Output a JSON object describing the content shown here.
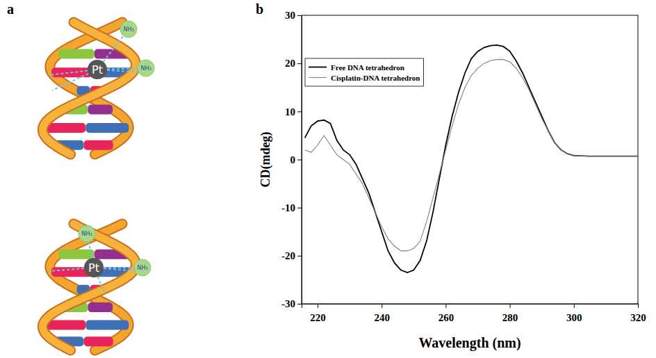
{
  "panel_letters": [
    "a",
    "b"
  ],
  "diagram": {
    "complexes": [
      {
        "metal": "Pt",
        "ligands": [
          "NH₃",
          "NH₃"
        ]
      },
      {
        "metal": "Pt",
        "ligands": [
          "NH₃",
          "NH₃"
        ]
      }
    ]
  },
  "chart_data": {
    "type": "line",
    "x_label": "Wavelength (nm)",
    "y_label": "CD(mdeg)",
    "x": [
      216,
      218,
      220,
      222,
      224,
      226,
      228,
      230,
      232,
      234,
      236,
      238,
      240,
      242,
      244,
      246,
      248,
      250,
      252,
      254,
      256,
      258,
      260,
      262,
      264,
      266,
      268,
      270,
      272,
      274,
      276,
      278,
      280,
      282,
      284,
      286,
      288,
      290,
      292,
      294,
      296,
      298,
      300,
      305,
      310,
      315,
      320
    ],
    "series": [
      {
        "name": "Free DNA tetrahedron",
        "color": "#000000",
        "values": [
          4.5,
          7,
          8,
          8.2,
          7.5,
          4,
          2,
          1,
          -1,
          -4,
          -7,
          -11,
          -15,
          -19,
          -21.5,
          -23,
          -23.5,
          -23,
          -21,
          -17,
          -11,
          -4,
          3,
          9,
          14,
          18,
          21,
          22.5,
          23.3,
          23.7,
          23.8,
          23.5,
          22.5,
          20.5,
          18,
          15,
          12,
          9,
          6,
          3.5,
          2,
          1.2,
          0.8,
          0.7,
          0.7,
          0.7,
          0.7
        ]
      },
      {
        "name": "Cisplatin-DNA tetrahedron",
        "color": "#808080",
        "values": [
          2,
          1.5,
          3,
          5,
          3,
          1,
          0,
          -1,
          -3,
          -5,
          -8,
          -11,
          -14,
          -16.5,
          -18,
          -19,
          -19,
          -18.5,
          -17,
          -13,
          -8,
          -3,
          2,
          7,
          11.5,
          15,
          17.5,
          19,
          20,
          20.6,
          20.8,
          20.8,
          20.3,
          19,
          17,
          14.5,
          11.5,
          8.5,
          6,
          3.5,
          2,
          1.2,
          0.8,
          0.7,
          0.7,
          0.7,
          0.7
        ]
      }
    ],
    "xlim": [
      215,
      320
    ],
    "xticks": [
      220,
      240,
      260,
      280,
      300,
      320
    ],
    "ylim": [
      -30,
      30
    ],
    "yticks": [
      -30,
      -20,
      -10,
      0,
      10,
      20,
      30
    ],
    "grid": false,
    "legend": "upper left"
  }
}
